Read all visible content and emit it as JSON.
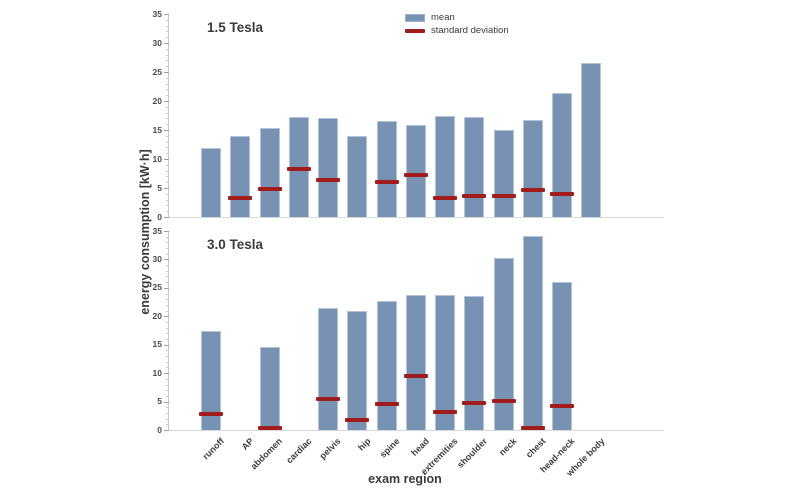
{
  "figure": {
    "y_label": "energy consumption [kW·h]",
    "x_label": "exam region",
    "legend": {
      "mean_label": "mean",
      "sd_label": "standard deviation"
    },
    "colors": {
      "bar_fill": "#7792b2",
      "bar_edge": "#b5c3d6",
      "sd_marker": "#a31c1c",
      "axis_line": "#c3c8ce",
      "text": "#3a3a3a"
    }
  },
  "chart_data": [
    {
      "type": "bar",
      "title": "1.5 Tesla",
      "categories": [
        "runoff",
        "AP",
        "abdomen",
        "cardiac",
        "pelvis",
        "hip",
        "spine",
        "head",
        "extremities",
        "shoulder",
        "neck",
        "chest",
        "head-neck",
        "whole body"
      ],
      "ylim": [
        0,
        35
      ],
      "yticks": [
        0,
        5,
        10,
        15,
        20,
        25,
        30,
        35
      ],
      "grid": false,
      "legend_position": "top-center",
      "series": [
        {
          "name": "mean",
          "values": [
            11.9,
            14.0,
            15.4,
            17.3,
            17.0,
            14.0,
            16.5,
            15.8,
            17.5,
            17.3,
            15.0,
            16.7,
            21.3,
            26.6
          ]
        },
        {
          "name": "standard deviation",
          "values": [
            null,
            3.2,
            4.9,
            8.2,
            6.4,
            null,
            6.1,
            7.2,
            3.2,
            3.7,
            3.7,
            4.6,
            3.9,
            null
          ]
        }
      ]
    },
    {
      "type": "bar",
      "title": "3.0 Tesla",
      "categories": [
        "runoff",
        "AP",
        "abdomen",
        "cardiac",
        "pelvis",
        "hip",
        "spine",
        "head",
        "extremities",
        "shoulder",
        "neck",
        "chest",
        "head-neck",
        "whole body"
      ],
      "ylim": [
        0,
        35
      ],
      "yticks": [
        0,
        5,
        10,
        15,
        20,
        25,
        30,
        35
      ],
      "grid": false,
      "series": [
        {
          "name": "mean",
          "values": [
            17.5,
            null,
            14.6,
            null,
            21.4,
            21.0,
            22.7,
            23.8,
            23.7,
            23.5,
            30.3,
            34.2,
            26.1,
            null
          ]
        },
        {
          "name": "standard deviation",
          "values": [
            2.9,
            null,
            0.2,
            null,
            5.5,
            1.8,
            4.5,
            9.5,
            3.1,
            4.7,
            5.1,
            0.3,
            4.2,
            null
          ]
        }
      ]
    }
  ]
}
